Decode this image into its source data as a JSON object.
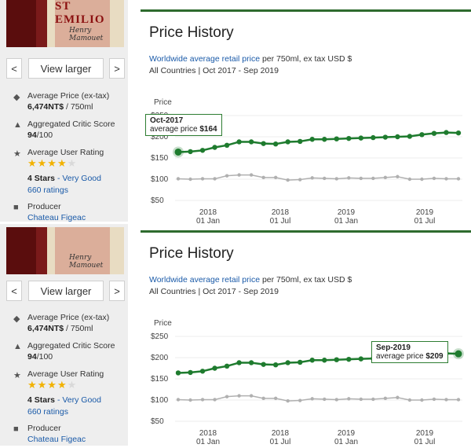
{
  "sidebar": {
    "bottle_logo": "ST EMILIO",
    "bottle_signature": "Henry Mamouet",
    "prev_label": "<",
    "next_label": ">",
    "view_larger": "View larger",
    "avg_price_label": "Average Price (ex-tax)",
    "avg_price_value": "6,474NT$",
    "avg_price_unit": " / 750ml",
    "critic_label": "Aggregated Critic Score",
    "critic_value": "94",
    "critic_suffix": "/100",
    "user_rating_label": "Average User Rating",
    "stars_filled": "★★★★",
    "stars_empty": "★",
    "stars_text": "4 Stars",
    "stars_desc": " - Very Good",
    "ratings_count": "660 ratings",
    "producer_label": "Producer",
    "producer_value": "Chateau Figeac",
    "icons": [
      "tag-icon",
      "thumbs-up-icon",
      "star-icon",
      "building-icon"
    ]
  },
  "panel": {
    "title": "Price History",
    "sub_link": "Worldwide average retail price",
    "sub_rest": " per 750ml, ex tax USD $",
    "sub2": "All Countries | Oct 2017 - Sep 2019",
    "price_label": "Price"
  },
  "tooltips": {
    "top": {
      "month": "Oct-2017",
      "label": "average price ",
      "value": "$164"
    },
    "bottom": {
      "month": "Sep-2019",
      "label": "average price ",
      "value": "$209"
    }
  },
  "chart_data": [
    {
      "type": "line",
      "ylabel": "Price",
      "yticks": [
        "$50",
        "$100",
        "$150",
        "$200",
        "$250"
      ],
      "ylim": [
        50,
        250
      ],
      "xticks": [
        {
          "year": "2018",
          "month": "01 Jan"
        },
        {
          "year": "2018",
          "month": "01 Jul"
        },
        {
          "year": "2019",
          "month": "01 Jan"
        },
        {
          "year": "2019",
          "month": "01 Jul"
        }
      ],
      "x": [
        "Oct-2017",
        "Nov-2017",
        "Dec-2017",
        "Jan-2018",
        "Feb-2018",
        "Mar-2018",
        "Apr-2018",
        "May-2018",
        "Jun-2018",
        "Jul-2018",
        "Aug-2018",
        "Sep-2018",
        "Oct-2018",
        "Nov-2018",
        "Dec-2018",
        "Jan-2019",
        "Feb-2019",
        "Mar-2019",
        "Apr-2019",
        "May-2019",
        "Jun-2019",
        "Jul-2019",
        "Aug-2019",
        "Sep-2019"
      ],
      "series": [
        {
          "color": "#1e7b2e",
          "values": [
            164,
            165,
            168,
            175,
            180,
            188,
            188,
            184,
            183,
            188,
            189,
            194,
            194,
            195,
            196,
            197,
            198,
            199,
            200,
            201,
            205,
            208,
            210,
            209
          ]
        },
        {
          "color": "#b0b0b0",
          "values": [
            101,
            100,
            101,
            101,
            108,
            110,
            110,
            104,
            104,
            98,
            99,
            103,
            102,
            101,
            103,
            102,
            102,
            104,
            106,
            100,
            100,
            102,
            101,
            101
          ]
        }
      ]
    },
    {
      "type": "line",
      "ylabel": "Price",
      "yticks": [
        "$50",
        "$100",
        "$150",
        "$200",
        "$250"
      ],
      "ylim": [
        50,
        250
      ],
      "xticks": [
        {
          "year": "2018",
          "month": "01 Jan"
        },
        {
          "year": "2018",
          "month": "01 Jul"
        },
        {
          "year": "2019",
          "month": "01 Jan"
        },
        {
          "year": "2019",
          "month": "01 Jul"
        }
      ],
      "x": [
        "Oct-2017",
        "Nov-2017",
        "Dec-2017",
        "Jan-2018",
        "Feb-2018",
        "Mar-2018",
        "Apr-2018",
        "May-2018",
        "Jun-2018",
        "Jul-2018",
        "Aug-2018",
        "Sep-2018",
        "Oct-2018",
        "Nov-2018",
        "Dec-2018",
        "Jan-2019",
        "Feb-2019",
        "Mar-2019",
        "Apr-2019",
        "May-2019",
        "Jun-2019",
        "Jul-2019",
        "Aug-2019",
        "Sep-2019"
      ],
      "series": [
        {
          "color": "#1e7b2e",
          "values": [
            164,
            165,
            168,
            175,
            180,
            188,
            188,
            184,
            183,
            188,
            189,
            194,
            194,
            195,
            196,
            197,
            198,
            199,
            200,
            201,
            205,
            208,
            210,
            209
          ]
        },
        {
          "color": "#b0b0b0",
          "values": [
            101,
            100,
            101,
            101,
            108,
            110,
            110,
            104,
            104,
            98,
            99,
            103,
            102,
            101,
            103,
            102,
            102,
            104,
            106,
            100,
            100,
            102,
            101,
            101
          ]
        }
      ]
    }
  ]
}
